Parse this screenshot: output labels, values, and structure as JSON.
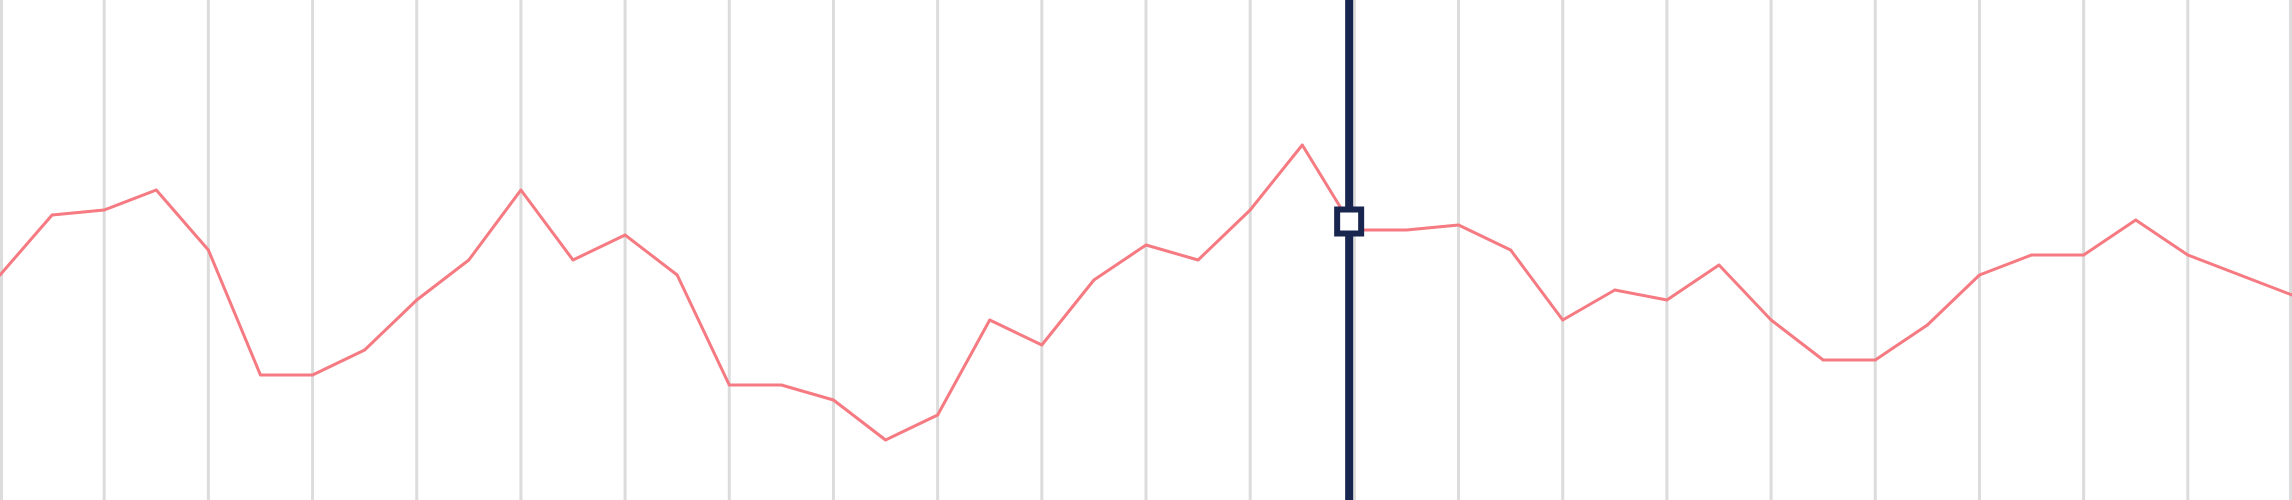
{
  "chart_data": {
    "type": "line",
    "title": "",
    "xlabel": "",
    "ylabel": "",
    "grid": "vertical",
    "legend": "none",
    "x": [
      0,
      1,
      2,
      3,
      4,
      5,
      6,
      7,
      8,
      9,
      10,
      11,
      12,
      13,
      14,
      15,
      16,
      17,
      18,
      19,
      20,
      21,
      22,
      23,
      24,
      25,
      26,
      27,
      28,
      29,
      30,
      31,
      32,
      33,
      34,
      35,
      36,
      37,
      38,
      39,
      40,
      41,
      42,
      43,
      44
    ],
    "xlim": [
      0,
      44
    ],
    "ylim": [
      0,
      100
    ],
    "series": [
      {
        "color": "#f57a82",
        "values": [
          45,
          57,
          58,
          62,
          50,
          25,
          25,
          30,
          40,
          48,
          62,
          48,
          53,
          45,
          23,
          23,
          20,
          12,
          17,
          36,
          31,
          44,
          51,
          48,
          58,
          71,
          54,
          54,
          55,
          50,
          36,
          42,
          40,
          47,
          36,
          28,
          28,
          35,
          45,
          49,
          49,
          56,
          49,
          45,
          41
        ]
      }
    ],
    "cursor": {
      "x": 25.9,
      "color": "#17254f"
    }
  }
}
